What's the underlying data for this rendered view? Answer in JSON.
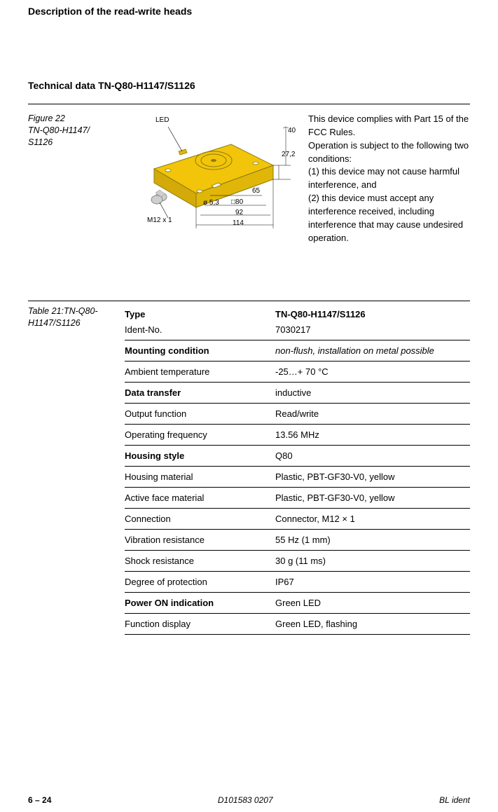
{
  "section_header": "Description of the read-write heads",
  "subsection_header": "Technical data TN-Q80-H1147/S1126",
  "figure": {
    "caption_line1": "Figure 22",
    "caption_line2": "TN-Q80-H1147/",
    "caption_line3": "S1126",
    "description": "This device complies with Part 15 of the FCC Rules.\nOperation is subject to the following two conditions:\n(1) this device may not cause harmful interference, and\n(2) this device must accept any interference received, including interference that may cause undesired operation.",
    "labels": {
      "led": "LED",
      "connector": "M12 x 1",
      "dia": "ø 5,3",
      "d40": "40",
      "d27_2": "27,2",
      "d65": "65",
      "d80": "80",
      "d92": "92",
      "d114": "114"
    },
    "colors": {
      "device_fill": "#f2c50a",
      "device_stroke": "#8a7a10",
      "connector_fill": "#cfcfcf"
    }
  },
  "table": {
    "caption": "Table 21:TN-Q80-H1147/S1126",
    "rows": [
      {
        "label": "Type",
        "value": "TN-Q80-H1147/S1126",
        "label_bold": true,
        "value_bold": true,
        "no_border": true
      },
      {
        "label": "Ident-No.",
        "value": "7030217"
      },
      {
        "label": "Mounting condition",
        "value": "non-flush, installation on metal possible",
        "label_bold": true,
        "value_italic": true
      },
      {
        "label": "Ambient temperature",
        "value": "-25…+ 70 °C"
      },
      {
        "label": "Data transfer",
        "value": "inductive",
        "label_bold": true
      },
      {
        "label": "Output function",
        "value": "Read/write"
      },
      {
        "label": "Operating frequency",
        "value": "13.56 MHz"
      },
      {
        "label": "Housing style",
        "value": "Q80",
        "label_bold": true
      },
      {
        "label": "Housing material",
        "value": "Plastic, PBT-GF30-V0, yellow"
      },
      {
        "label": "Active face material",
        "value": "Plastic, PBT-GF30-V0, yellow"
      },
      {
        "label": "Connection",
        "value": "Connector, M12 × 1"
      },
      {
        "label": "Vibration resistance",
        "value": "55 Hz (1 mm)"
      },
      {
        "label": "Shock resistance",
        "value": "30 g (11 ms)"
      },
      {
        "label": "Degree of protection",
        "value": "IP67"
      },
      {
        "label": "Power ON indication",
        "value": "Green LED",
        "label_bold": true
      },
      {
        "label": "Function display",
        "value": "Green LED, flashing"
      }
    ]
  },
  "footer": {
    "page": "6 – 24",
    "doc_id": "D101583 0207",
    "brand": "BL ident"
  }
}
